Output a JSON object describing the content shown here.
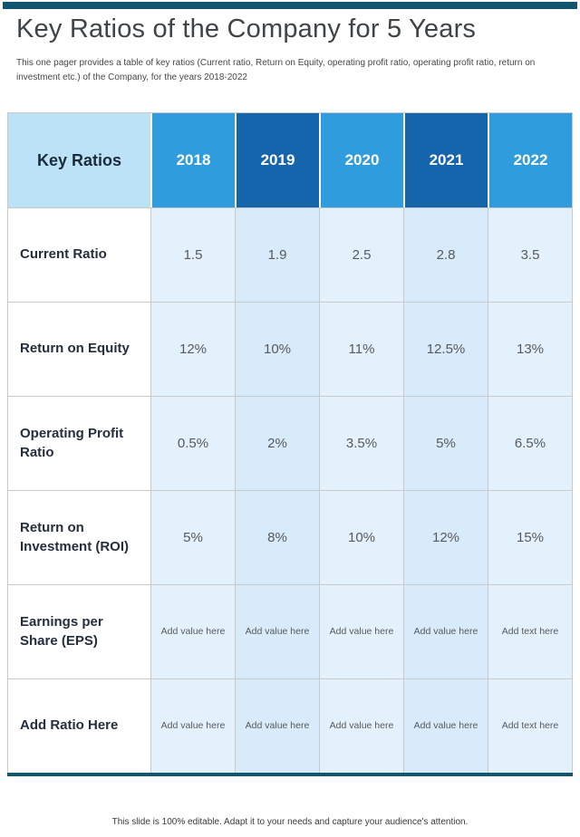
{
  "slide": {
    "title": "Key Ratios of the Company for 5 Years",
    "subtitle": "This one pager provides a table of key ratios (Current ratio, Return on Equity,  operating profit ratio, operating profit ratio, return on investment etc.) of the Company, for the years 2018-2022",
    "footer": "This slide is 100% editable. Adapt it to your needs and capture your audience's attention."
  },
  "table": {
    "header_label": "Key Ratios",
    "years": [
      "2018",
      "2019",
      "2020",
      "2021",
      "2022"
    ],
    "rows": [
      {
        "label": "Current Ratio",
        "values": [
          "1.5",
          "1.9",
          "2.5",
          "2.8",
          "3.5"
        ]
      },
      {
        "label": "Return on Equity",
        "values": [
          "12%",
          "10%",
          "11%",
          "12.5%",
          "13%"
        ]
      },
      {
        "label": "Operating Profit Ratio",
        "values": [
          "0.5%",
          "2%",
          "3.5%",
          "5%",
          "6.5%"
        ]
      },
      {
        "label": "Return on Investment (ROI)",
        "values": [
          "5%",
          "8%",
          "10%",
          "12%",
          "15%"
        ]
      },
      {
        "label": "Earnings per Share (EPS)",
        "values": [
          "Add value here",
          "Add value here",
          "Add value here",
          "Add value here",
          "Add text here"
        ]
      },
      {
        "label": "Add Ratio Here",
        "values": [
          "Add value here",
          "Add value here",
          "Add value here",
          "Add value here",
          "Add text here"
        ]
      }
    ]
  },
  "colors": {
    "topbar": "#0F566E",
    "year_header_light": "#2F9CDE",
    "year_header_dark": "#1565AD",
    "key_ratios_bg": "#BCE2F8",
    "col_light": "#E3F1FC",
    "col_dark": "#D7EBFA",
    "grid_line": "#C9C9C9"
  }
}
